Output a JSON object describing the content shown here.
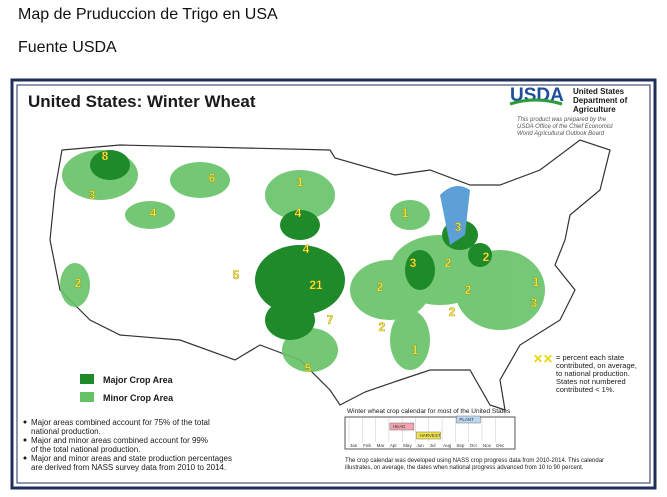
{
  "header": {
    "title": "Map de Pruduccion de Trigo en USA",
    "subtitle": "Fuente USDA"
  },
  "map": {
    "title": "United States:  Winter Wheat",
    "agency": {
      "logo": "USDA",
      "name": [
        "United States",
        "Department of",
        "Agriculture"
      ],
      "note": [
        "This product was prepared by the",
        "USDA Office of the Chief Economist",
        "World Agricultural Outlook Board"
      ]
    },
    "legend": [
      "Major Crop Area",
      "Minor Crop Area"
    ],
    "state_labels": [
      8,
      3,
      6,
      1,
      4,
      4,
      4,
      5,
      21,
      2,
      2,
      7,
      2,
      1,
      3,
      3,
      2,
      2,
      2,
      2,
      1,
      3,
      1,
      5
    ],
    "key_note": [
      "= percent each state",
      "contributed, on average,",
      "to national production.",
      "States not numbered",
      "contributed < 1%."
    ],
    "notes": [
      "Major areas combined account for 75% of the total",
      "national production.",
      "Major and minor areas combined account for 99%",
      "of the total national production.",
      "Major and minor areas and state production percentages",
      "are derived from NASS survey data from 2010 to 2014."
    ],
    "calendar": {
      "title": "Winter wheat crop calendar for most of the United States",
      "months": [
        "Jan",
        "Feb",
        "Mar",
        "Apr",
        "May",
        "Jun",
        "Jul",
        "Aug",
        "Sep",
        "Oct",
        "Nov",
        "Dec"
      ],
      "stages": [
        "HEAD",
        "HARVEST",
        "PLANT"
      ]
    },
    "footnote": [
      "The crop calendar was developed using NASS crop progress data from 2010-2014.  This calendar",
      "illustrates, on average, the dates when national progress advanced from 10 to 90 percent."
    ]
  }
}
